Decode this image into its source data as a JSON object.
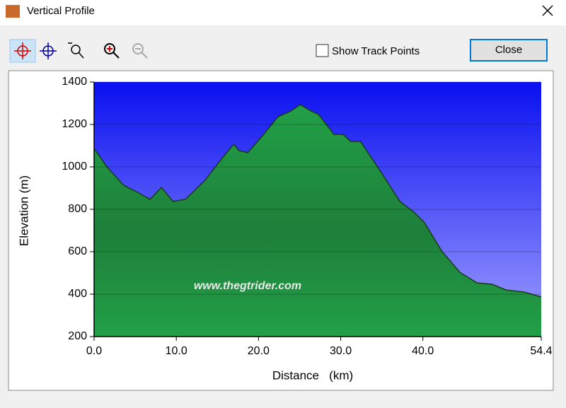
{
  "window": {
    "title": "Vertical Profile",
    "checkbox_label": "Show Track Points",
    "button_label": "Close"
  },
  "chart_data": {
    "type": "area",
    "xlabel": "Distance   (km)",
    "ylabel": "Elevation (m)",
    "annotation": "www.thegtrider.com",
    "x": [
      0,
      1.5,
      3.6,
      5.3,
      6.8,
      8.2,
      9.6,
      11.1,
      13.5,
      15.7,
      17.0,
      17.6,
      18.7,
      20.4,
      22.4,
      23.8,
      25.1,
      26.4,
      27.3,
      29.2,
      30.3,
      31.2,
      32.4,
      35.0,
      37.2,
      38.9,
      40.2,
      42.3,
      44.5,
      46.6,
      48.4,
      50.1,
      52.3,
      54.4
    ],
    "values": [
      1087,
      1003,
      913,
      880,
      847,
      903,
      837,
      847,
      937,
      1047,
      1107,
      1077,
      1067,
      1143,
      1237,
      1260,
      1293,
      1263,
      1247,
      1153,
      1153,
      1120,
      1120,
      970,
      837,
      787,
      737,
      603,
      503,
      453,
      447,
      420,
      410,
      387
    ],
    "color": "#22a047",
    "background_color": "#0a10f0",
    "xlim": [
      0,
      54.4
    ],
    "xticks": [
      {
        "value": 0,
        "label": "0.0"
      },
      {
        "value": 10,
        "label": "10.0"
      },
      {
        "value": 20,
        "label": "20.0"
      },
      {
        "value": 30,
        "label": "30.0"
      },
      {
        "value": 40,
        "label": "40.0"
      },
      54.4
    ],
    "ylim": [
      200,
      1400
    ],
    "yticks": [
      200,
      400,
      600,
      800,
      1000,
      1200,
      1400
    ],
    "grid": true
  }
}
